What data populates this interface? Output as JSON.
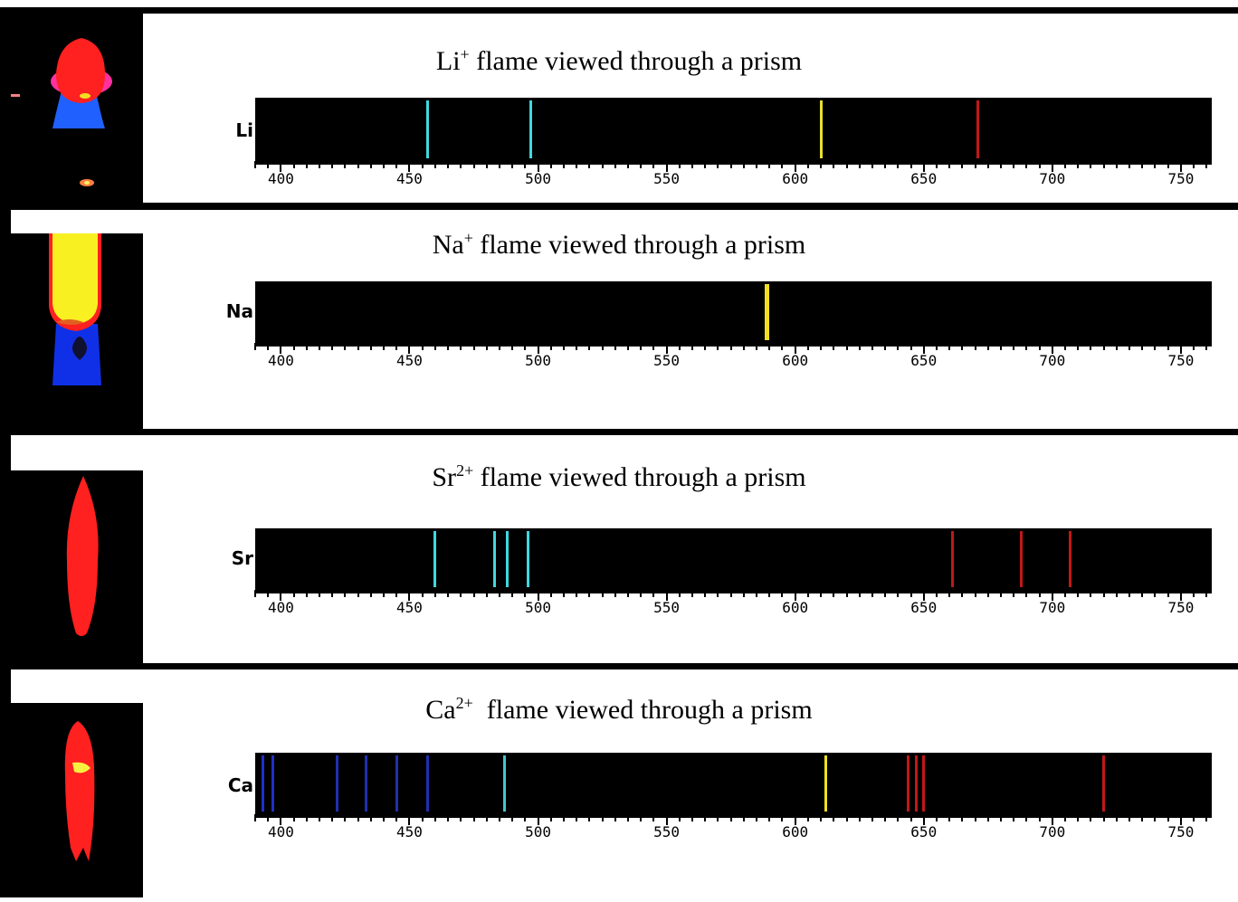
{
  "panels": [
    {
      "ion": "Li",
      "charge": "+",
      "title_rest": " flame viewed through a prism",
      "element_label": "Li",
      "lines": [
        {
          "nm": 457,
          "color": "#3fd8e0"
        },
        {
          "nm": 497,
          "color": "#3fd8e0"
        },
        {
          "nm": 610,
          "color": "#e8e030"
        },
        {
          "nm": 671,
          "color": "#c01818"
        }
      ]
    },
    {
      "ion": "Na",
      "charge": "+",
      "title_rest": " flame viewed through a prism",
      "element_label": "Na",
      "lines": [
        {
          "nm": 589,
          "color": "#f0e020",
          "wide": true
        }
      ]
    },
    {
      "ion": "Sr",
      "charge": "2+",
      "title_rest": " flame viewed through a prism",
      "element_label": "Sr",
      "lines": [
        {
          "nm": 460,
          "color": "#3fd8e0"
        },
        {
          "nm": 483,
          "color": "#3fd8e0"
        },
        {
          "nm": 488,
          "color": "#3fd8e0"
        },
        {
          "nm": 496,
          "color": "#3fd8e0"
        },
        {
          "nm": 661,
          "color": "#c01818"
        },
        {
          "nm": 688,
          "color": "#c01818"
        },
        {
          "nm": 707,
          "color": "#c01818"
        }
      ]
    },
    {
      "ion": "Ca",
      "charge": "2+",
      "title_rest": "  flame viewed through a prism",
      "element_label": "Ca",
      "lines": [
        {
          "nm": 393,
          "color": "#2030c8"
        },
        {
          "nm": 397,
          "color": "#2030c8"
        },
        {
          "nm": 422,
          "color": "#2030b0"
        },
        {
          "nm": 433,
          "color": "#2030b0"
        },
        {
          "nm": 445,
          "color": "#2030b0"
        },
        {
          "nm": 457,
          "color": "#2030b0"
        },
        {
          "nm": 487,
          "color": "#3fc8d0"
        },
        {
          "nm": 612,
          "color": "#f0e020"
        },
        {
          "nm": 644,
          "color": "#c01818"
        },
        {
          "nm": 647,
          "color": "#c01818"
        },
        {
          "nm": 650,
          "color": "#c01818"
        },
        {
          "nm": 720,
          "color": "#c01818"
        }
      ]
    }
  ],
  "axis": {
    "range_nm": [
      390,
      762
    ],
    "labels": [
      "400",
      "450",
      "500",
      "550",
      "600",
      "650",
      "700",
      "750"
    ],
    "label_values": [
      400,
      450,
      500,
      550,
      600,
      650,
      700,
      750
    ],
    "minor_step_nm": 5
  },
  "flames": [
    "red flame",
    "yellow flame",
    "red flame",
    "red flame"
  ]
}
